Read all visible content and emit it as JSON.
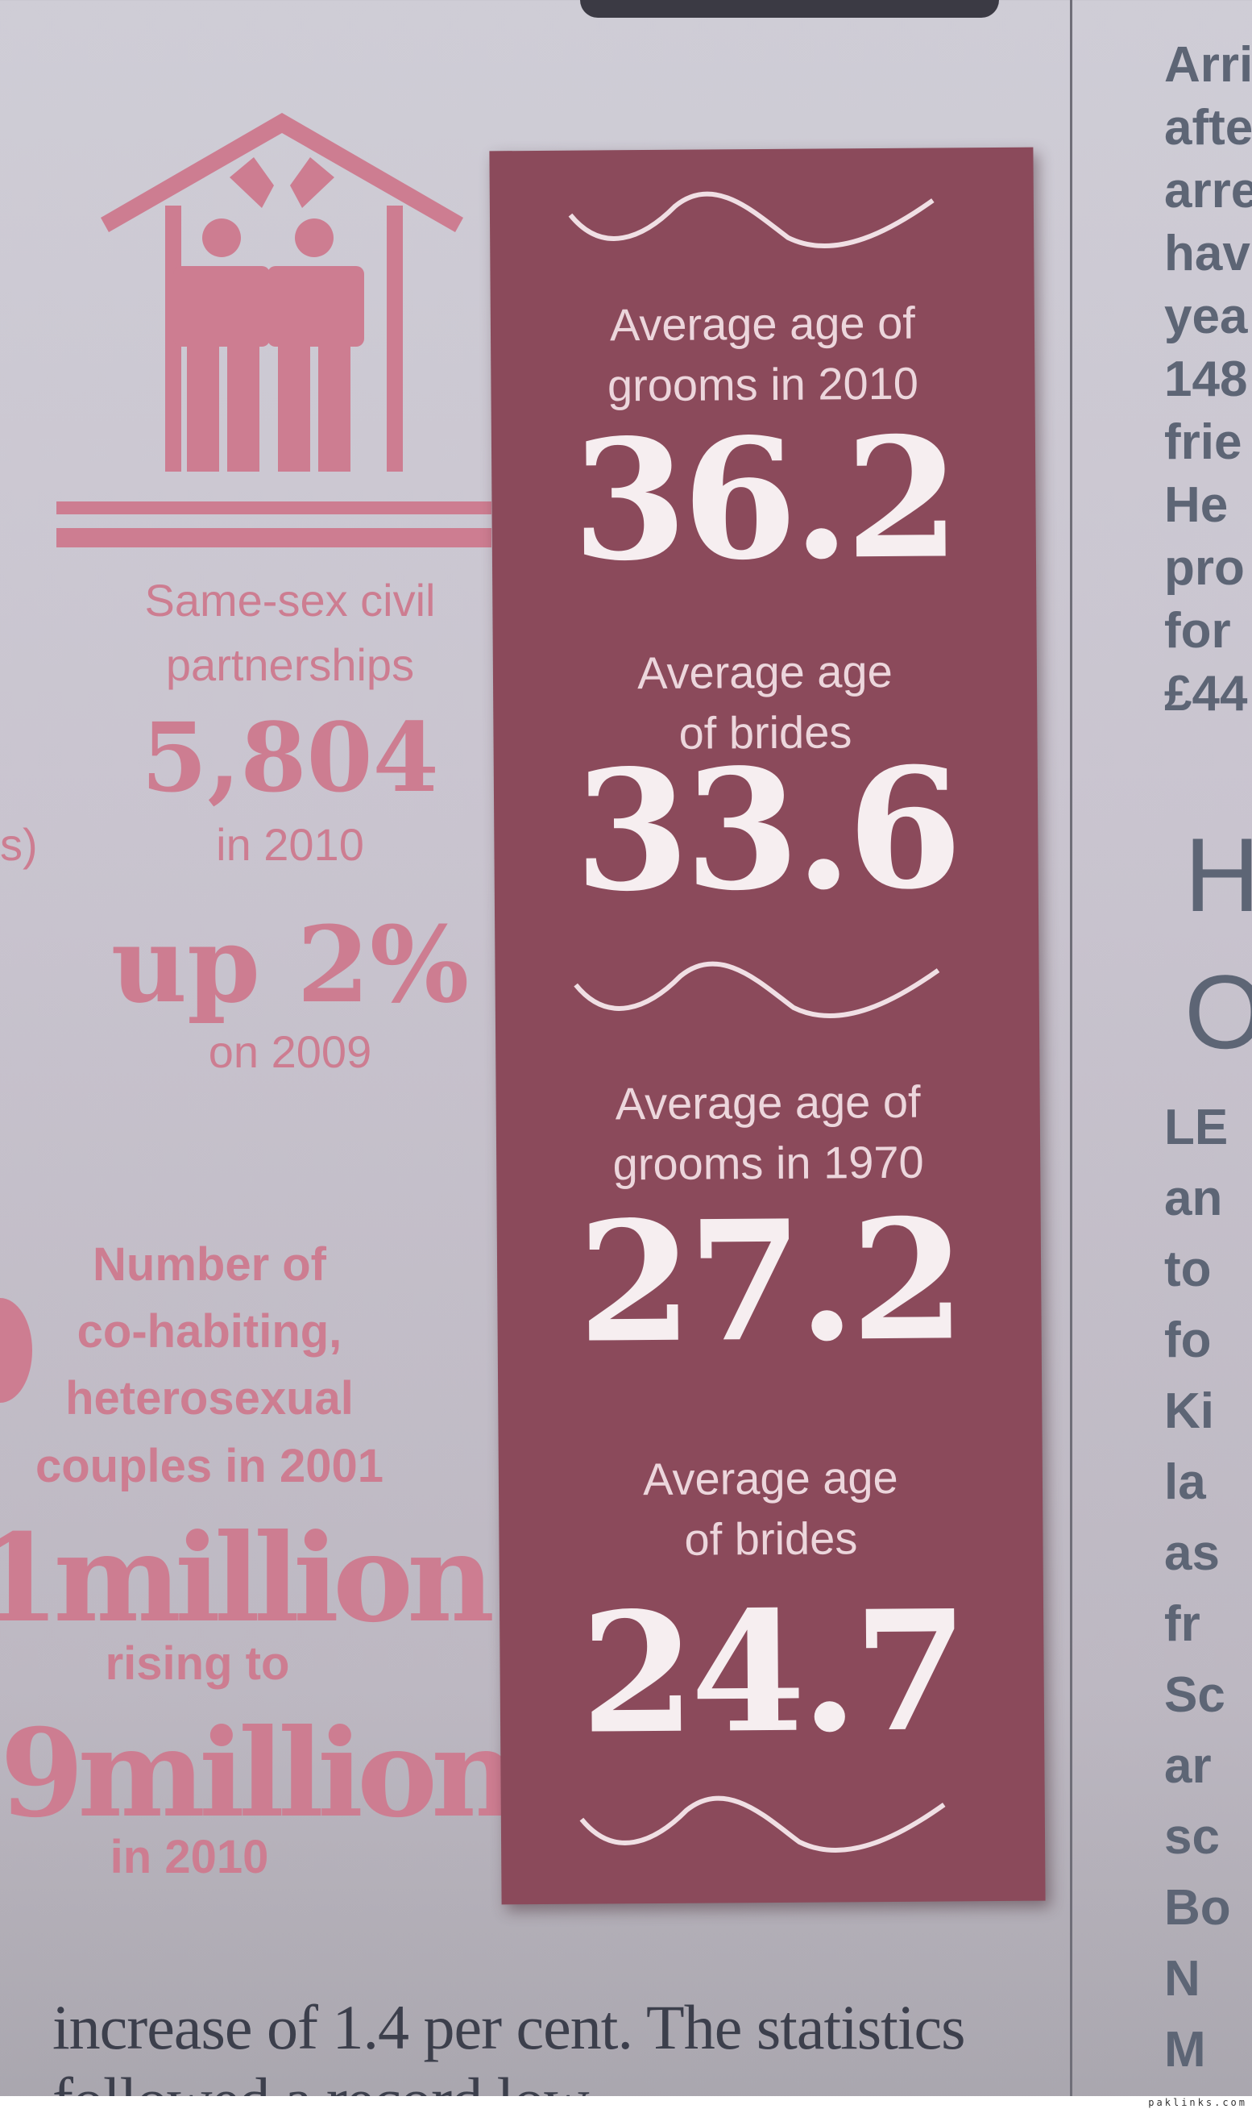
{
  "infographic": {
    "civil_partnerships": {
      "label_line1": "Same-sex civil",
      "label_line2": "partnerships",
      "value": "5,804",
      "year": "in 2010",
      "change": "up 2%",
      "change_ref": "on 2009"
    },
    "cohabiting": {
      "label_lines": [
        "Number of",
        "co-habiting,",
        "heterosexual",
        "couples in 2001"
      ],
      "value_2001": "1million",
      "connector": "rising to",
      "value_2010": "9million",
      "year": "in 2010"
    },
    "fragment_left": "s)",
    "panel": {
      "items": [
        {
          "label_line1": "Average age of",
          "label_line2": "grooms in 2010",
          "value": "36.2"
        },
        {
          "label_line1": "Average age",
          "label_line2": "of brides",
          "value": "33.6"
        },
        {
          "label_line1": "Average age of",
          "label_line2": "grooms in 1970",
          "value": "27.2"
        },
        {
          "label_line1": "Average age",
          "label_line2": "of brides",
          "value": "24.7"
        }
      ]
    },
    "icon": "civil-partnership-house-icon"
  },
  "article": {
    "body_line1": "increase of 1.4 per cent. The statistics",
    "body_line2": "followed a record low"
  },
  "right_column": {
    "lines_top": [
      "Arri",
      "afte",
      "arre",
      "hav",
      "yea",
      "148",
      "frie",
      "He",
      "pro",
      "for",
      "£44"
    ],
    "headline_lines": [
      "H",
      "O"
    ],
    "lines_bottom": [
      "LE",
      "an",
      "to",
      "fo",
      "Ki",
      "la",
      "as",
      "fr",
      "Sc",
      "ar",
      "sc",
      "Bo",
      "N",
      "M"
    ]
  },
  "watermark": "paklinks.com",
  "colors": {
    "panel": "#8b4a5b",
    "accent_pink": "#cd7d91",
    "panel_text": "#ecd6dc"
  }
}
